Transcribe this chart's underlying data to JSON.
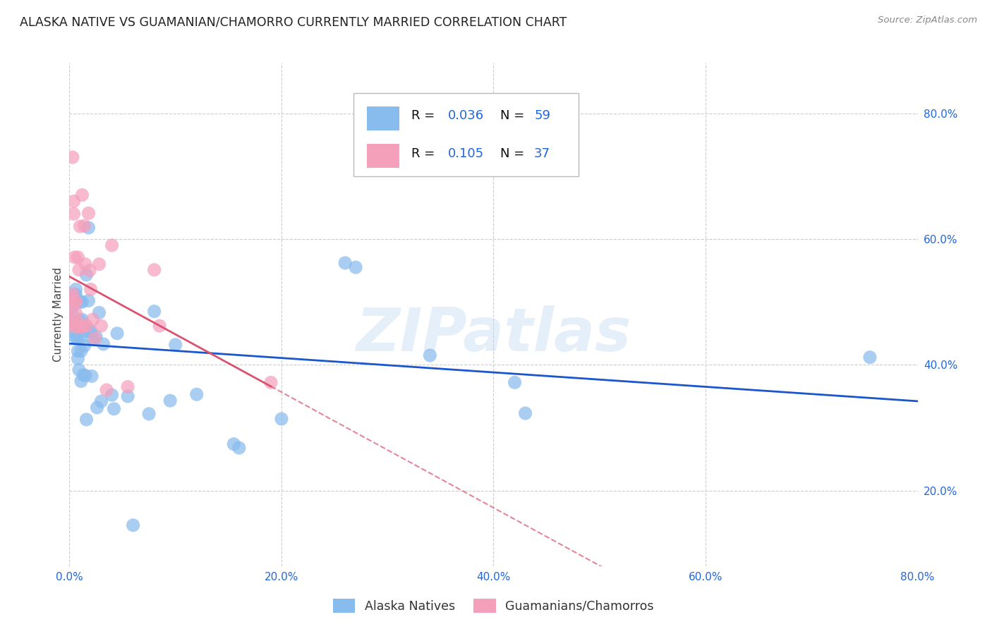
{
  "title": "ALASKA NATIVE VS GUAMANIAN/CHAMORRO CURRENTLY MARRIED CORRELATION CHART",
  "source": "Source: ZipAtlas.com",
  "ylabel": "Currently Married",
  "xlim": [
    0.0,
    0.8
  ],
  "ylim": [
    0.08,
    0.88
  ],
  "xtick_vals": [
    0.0,
    0.2,
    0.4,
    0.6,
    0.8
  ],
  "ytick_vals": [
    0.2,
    0.4,
    0.6,
    0.8
  ],
  "legend_label1": "Alaska Natives",
  "legend_label2": "Guamanians/Chamorros",
  "R1": "0.036",
  "N1": "59",
  "R2": "0.105",
  "N2": "37",
  "color1": "#88bbee",
  "color2": "#f4a0bb",
  "trendline1_color": "#1a56cc",
  "trendline2_color": "#d9536f",
  "background_color": "#ffffff",
  "grid_color": "#cccccc",
  "watermark": "ZIPatlas",
  "alaska_x": [
    0.002,
    0.003,
    0.003,
    0.004,
    0.004,
    0.005,
    0.005,
    0.005,
    0.006,
    0.006,
    0.007,
    0.007,
    0.008,
    0.008,
    0.009,
    0.01,
    0.01,
    0.01,
    0.011,
    0.011,
    0.012,
    0.012,
    0.013,
    0.013,
    0.014,
    0.015,
    0.015,
    0.016,
    0.016,
    0.018,
    0.018,
    0.019,
    0.02,
    0.021,
    0.022,
    0.025,
    0.026,
    0.028,
    0.03,
    0.032,
    0.04,
    0.042,
    0.045,
    0.055,
    0.06,
    0.075,
    0.08,
    0.095,
    0.1,
    0.12,
    0.155,
    0.16,
    0.2,
    0.26,
    0.27,
    0.34,
    0.42,
    0.43,
    0.755
  ],
  "alaska_y": [
    0.455,
    0.47,
    0.48,
    0.495,
    0.505,
    0.51,
    0.445,
    0.5,
    0.512,
    0.52,
    0.463,
    0.442,
    0.422,
    0.41,
    0.392,
    0.5,
    0.47,
    0.443,
    0.422,
    0.374,
    0.5,
    0.472,
    0.453,
    0.384,
    0.43,
    0.46,
    0.383,
    0.313,
    0.543,
    0.618,
    0.502,
    0.453,
    0.454,
    0.382,
    0.441,
    0.445,
    0.332,
    0.483,
    0.342,
    0.433,
    0.352,
    0.33,
    0.45,
    0.35,
    0.145,
    0.322,
    0.485,
    0.343,
    0.432,
    0.353,
    0.274,
    0.268,
    0.314,
    0.562,
    0.555,
    0.415,
    0.372,
    0.323,
    0.412
  ],
  "guam_x": [
    0.0,
    0.001,
    0.002,
    0.002,
    0.003,
    0.003,
    0.004,
    0.004,
    0.005,
    0.005,
    0.006,
    0.006,
    0.007,
    0.007,
    0.008,
    0.009,
    0.009,
    0.01,
    0.011,
    0.012,
    0.013,
    0.014,
    0.015,
    0.016,
    0.018,
    0.019,
    0.02,
    0.022,
    0.024,
    0.028,
    0.03,
    0.035,
    0.04,
    0.055,
    0.08,
    0.085,
    0.19
  ],
  "guam_y": [
    0.462,
    0.49,
    0.47,
    0.507,
    0.513,
    0.73,
    0.66,
    0.64,
    0.571,
    0.5,
    0.5,
    0.482,
    0.47,
    0.46,
    0.571,
    0.551,
    0.462,
    0.62,
    0.46,
    0.67,
    0.462,
    0.621,
    0.56,
    0.462,
    0.641,
    0.55,
    0.52,
    0.472,
    0.442,
    0.56,
    0.462,
    0.36,
    0.59,
    0.365,
    0.551,
    0.462,
    0.372
  ]
}
